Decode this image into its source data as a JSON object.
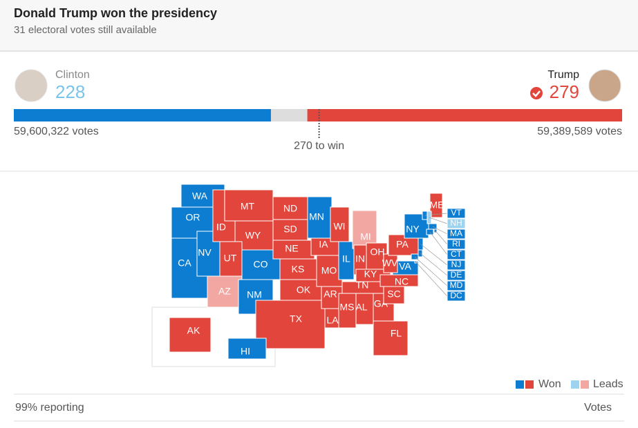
{
  "header": {
    "title": "Donald Trump won the presidency",
    "subtitle": {
      "value": 31,
      "label": "31 electoral votes still available"
    }
  },
  "candidates": [
    {
      "name": "Clinton",
      "electoral": 228,
      "votes": "59,600,322 votes",
      "color": "#0c7dd0",
      "number_color": "#7cc3ea"
    },
    {
      "name": "Trump",
      "electoral": 279,
      "votes": "59,389,589 votes",
      "color": "#e2453b",
      "number_color": "#e2453b"
    }
  ],
  "to_win": {
    "value": 270,
    "label": "270 to win"
  },
  "remaining_color": "#dddddd",
  "states": [
    {
      "label": "WA",
      "color": "#0c7dd0"
    },
    {
      "label": "OR",
      "color": "#0c7dd0"
    },
    {
      "label": "CA",
      "color": "#0c7dd0"
    },
    {
      "label": "NV",
      "color": "#0c7dd0"
    },
    {
      "label": "ID",
      "color": "#e2453b"
    },
    {
      "label": "MT",
      "color": "#e2453b"
    },
    {
      "label": "WY",
      "color": "#e2453b"
    },
    {
      "label": "UT",
      "color": "#e2453b"
    },
    {
      "label": "CO",
      "color": "#0c7dd0"
    },
    {
      "label": "AZ",
      "color": "#f2a7a2"
    },
    {
      "label": "NM",
      "color": "#0c7dd0"
    },
    {
      "label": "ND",
      "color": "#e2453b"
    },
    {
      "label": "SD",
      "color": "#e2453b"
    },
    {
      "label": "NE",
      "color": "#e2453b"
    },
    {
      "label": "KS",
      "color": "#e2453b"
    },
    {
      "label": "OK",
      "color": "#e2453b"
    },
    {
      "label": "TX",
      "color": "#e2453b"
    },
    {
      "label": "MN",
      "color": "#0c7dd0"
    },
    {
      "label": "IA",
      "color": "#e2453b"
    },
    {
      "label": "MO",
      "color": "#e2453b"
    },
    {
      "label": "AR",
      "color": "#e2453b"
    },
    {
      "label": "LA",
      "color": "#e2453b"
    },
    {
      "label": "WI",
      "color": "#e2453b"
    },
    {
      "label": "IL",
      "color": "#0c7dd0"
    },
    {
      "label": "MI",
      "color": "#f2a7a2"
    },
    {
      "label": "IN",
      "color": "#e2453b"
    },
    {
      "label": "OH",
      "color": "#e2453b"
    },
    {
      "label": "KY",
      "color": "#e2453b"
    },
    {
      "label": "TN",
      "color": "#e2453b"
    },
    {
      "label": "MS",
      "color": "#e2453b"
    },
    {
      "label": "AL",
      "color": "#e2453b"
    },
    {
      "label": "GA",
      "color": "#e2453b"
    },
    {
      "label": "FL",
      "color": "#e2453b"
    },
    {
      "label": "SC",
      "color": "#e2453b"
    },
    {
      "label": "NC",
      "color": "#e2453b"
    },
    {
      "label": "VA",
      "color": "#0c7dd0"
    },
    {
      "label": "WV",
      "color": "#e2453b"
    },
    {
      "label": "PA",
      "color": "#e2453b"
    },
    {
      "label": "NY",
      "color": "#0c7dd0"
    },
    {
      "label": "ME",
      "color": "#e2453b"
    },
    {
      "label": "VT",
      "color": "#0c7dd0"
    },
    {
      "label": "NH",
      "color": "#9dd3ee"
    },
    {
      "label": "MA",
      "color": "#0c7dd0"
    },
    {
      "label": "RI",
      "color": "#0c7dd0"
    },
    {
      "label": "CT",
      "color": "#0c7dd0"
    },
    {
      "label": "NJ",
      "color": "#0c7dd0"
    },
    {
      "label": "DE",
      "color": "#0c7dd0"
    },
    {
      "label": "MD",
      "color": "#0c7dd0"
    },
    {
      "label": "DC",
      "color": "#0c7dd0"
    },
    {
      "label": "AK",
      "color": "#e2453b"
    },
    {
      "label": "HI",
      "color": "#0c7dd0"
    }
  ],
  "legend": {
    "won": "Won",
    "leads": "Leads",
    "won_colors": [
      "#0c7dd0",
      "#e2453b"
    ],
    "leads_colors": [
      "#9dd3ee",
      "#f2a7a2"
    ]
  },
  "footer": {
    "left": "99% reporting",
    "right": "Votes"
  }
}
